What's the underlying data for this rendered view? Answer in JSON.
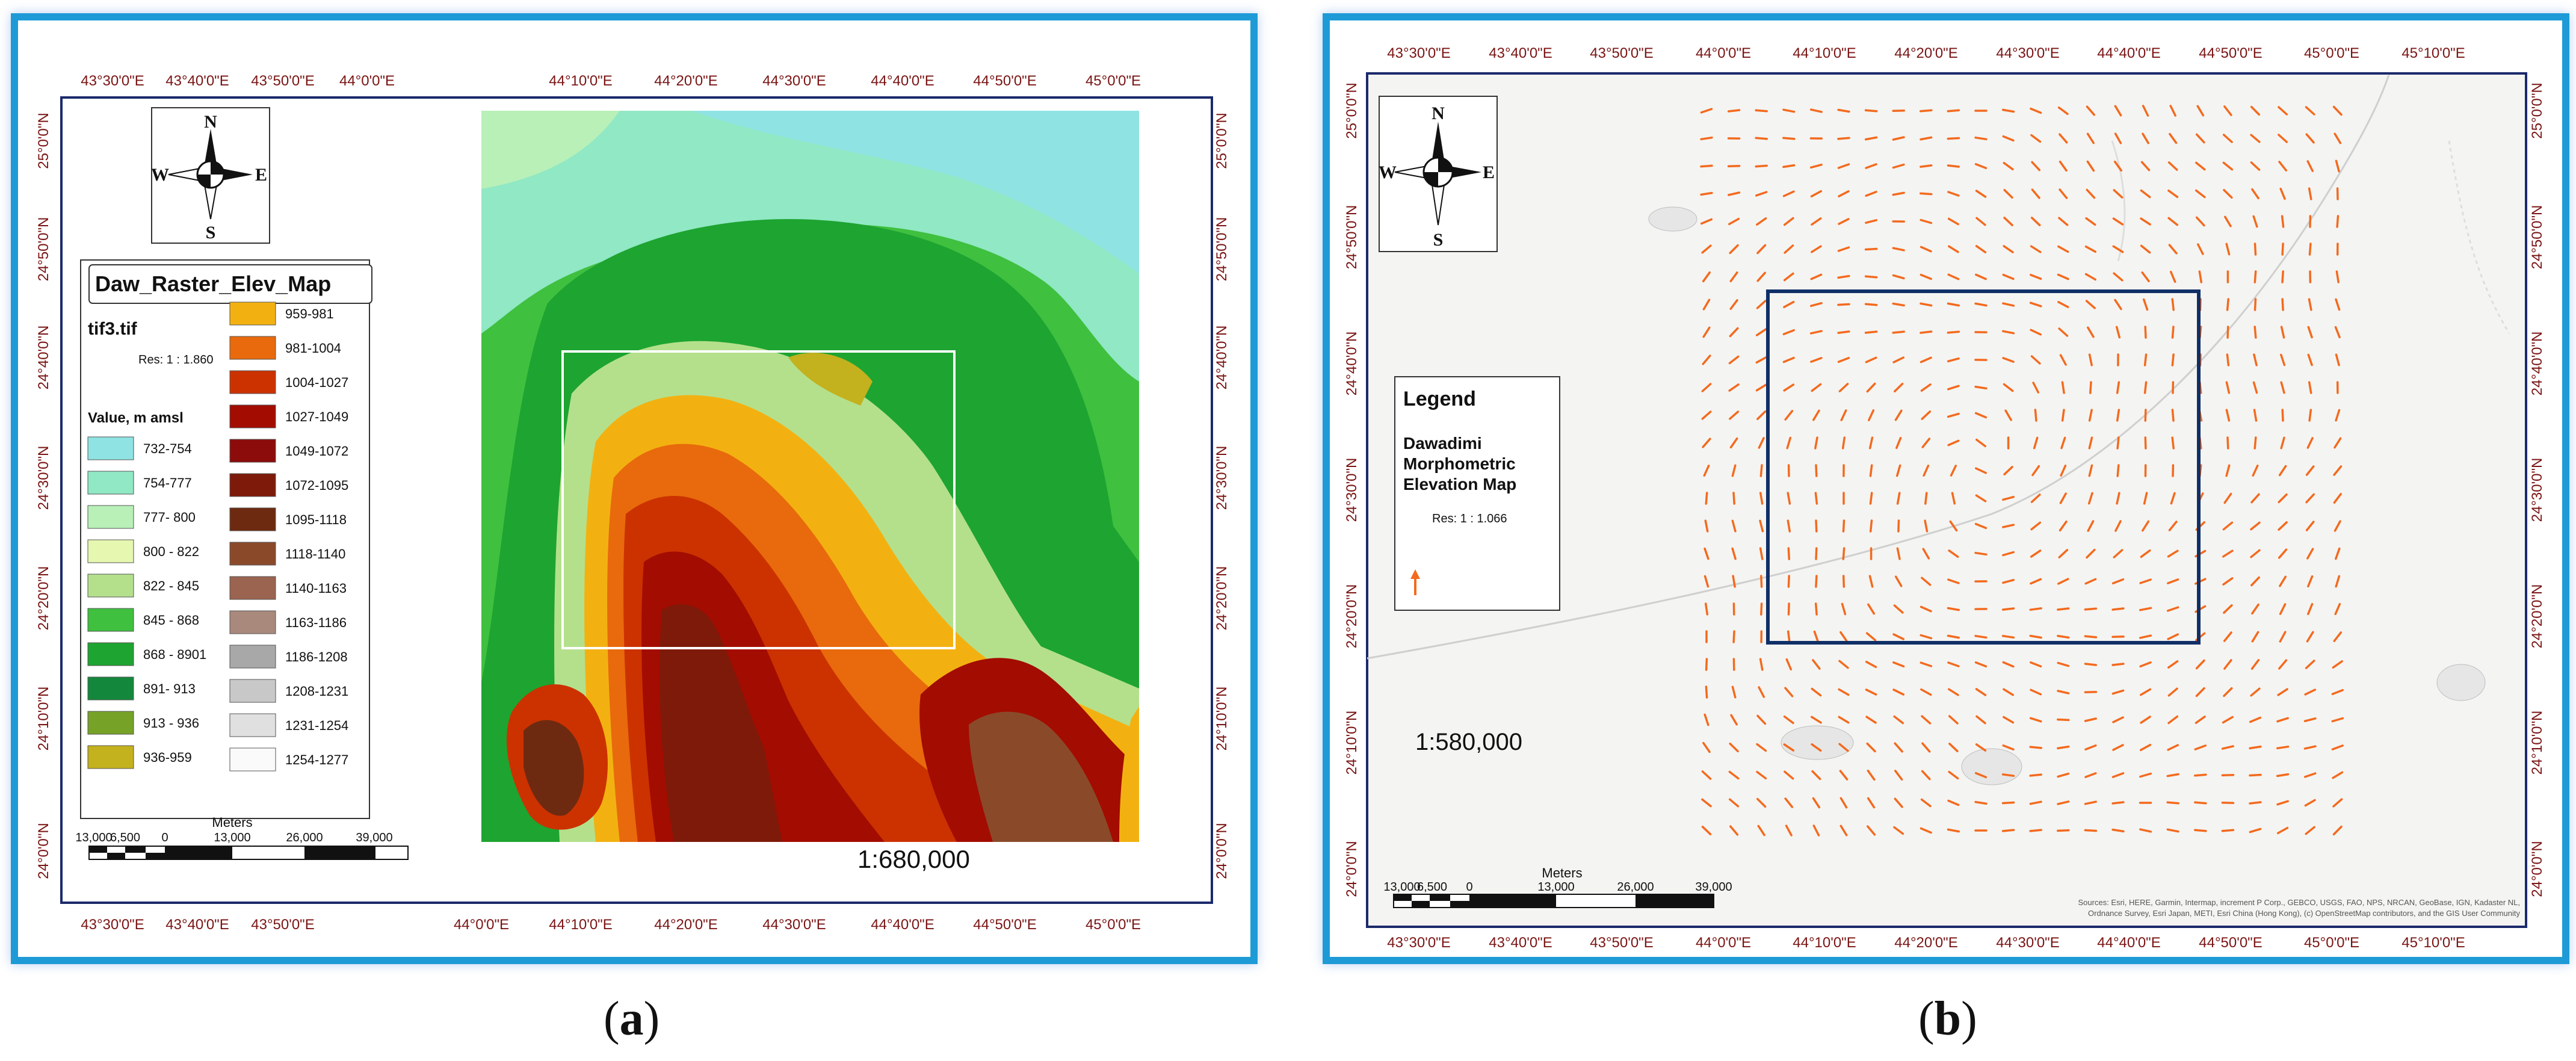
{
  "panel_a": {
    "lon_labels_top": [
      "43°30'0\"E",
      "43°40'0\"E",
      "43°50'0\"E",
      "44°0'0\"E",
      "44°10'0\"E",
      "44°20'0\"E",
      "44°30'0\"E",
      "44°40'0\"E",
      "44°50'0\"E",
      "45°0'0\"E"
    ],
    "lon_labels_bottom": [
      "43°30'0\"E",
      "43°40'0\"E",
      "43°50'0\"E",
      "44°0'0\"E",
      "44°10'0\"E",
      "44°20'0\"E",
      "44°30'0\"E",
      "44°40'0\"E",
      "44°50'0\"E",
      "45°0'0\"E"
    ],
    "lat_labels": [
      "25°0'0\"N",
      "24°50'0\"N",
      "24°40'0\"N",
      "24°30'0\"N",
      "24°20'0\"N",
      "24°10'0\"N",
      "24°0'0\"N"
    ],
    "compass": {
      "n": "N",
      "s": "S",
      "e": "E",
      "w": "W"
    },
    "legend": {
      "title": "Daw_Raster_Elev_Map",
      "layer": "tif3.tif",
      "res": "Res: 1 : 1.860",
      "value_heading": "Value, m amsl",
      "classes_left": [
        {
          "label": "732-754",
          "color": "#8fe3e3"
        },
        {
          "label": "754-777",
          "color": "#90e8c4"
        },
        {
          "label": "777- 800",
          "color": "#b8f0b8"
        },
        {
          "label": "800 - 822",
          "color": "#e6f7b0"
        },
        {
          "label": "822 - 845",
          "color": "#b4e08c"
        },
        {
          "label": "845 - 868",
          "color": "#3fc03f"
        },
        {
          "label": "868 - 8901",
          "color": "#1ea431"
        },
        {
          "label": "891- 913",
          "color": "#13883c"
        },
        {
          "label": "913 - 936",
          "color": "#76a227"
        },
        {
          "label": "936-959",
          "color": "#c3b11e"
        }
      ],
      "classes_right": [
        {
          "label": "959-981",
          "color": "#f3b111"
        },
        {
          "label": "981-1004",
          "color": "#e86a0c"
        },
        {
          "label": "1004-1027",
          "color": "#cc3200"
        },
        {
          "label": "1027-1049",
          "color": "#a30c00"
        },
        {
          "label": "1049-1072",
          "color": "#8c0c0c"
        },
        {
          "label": "1072-1095",
          "color": "#7e1a0a"
        },
        {
          "label": "1095-1118",
          "color": "#6e2a10"
        },
        {
          "label": "1118-1140",
          "color": "#8a4a2a"
        },
        {
          "label": "1140-1163",
          "color": "#9a6450"
        },
        {
          "label": "1163-1186",
          "color": "#a9897c"
        },
        {
          "label": "1186-1208",
          "color": "#a8a8a8"
        },
        {
          "label": "1208-1231",
          "color": "#c8c8c8"
        },
        {
          "label": "1231-1254",
          "color": "#e0e0e0"
        },
        {
          "label": "1254-1277",
          "color": "#fafafa"
        }
      ]
    },
    "scalebar": {
      "units": "Meters",
      "labels": [
        "13,000",
        "6,500",
        "0",
        "13,000",
        "26,000",
        "39,000"
      ]
    },
    "scale_text": "1:680,000",
    "caption_letter": "a"
  },
  "panel_b": {
    "lon_labels_top": [
      "43°30'0\"E",
      "43°40'0\"E",
      "43°50'0\"E",
      "44°0'0\"E",
      "44°10'0\"E",
      "44°20'0\"E",
      "44°30'0\"E",
      "44°40'0\"E",
      "44°50'0\"E",
      "45°0'0\"E",
      "45°10'0\"E"
    ],
    "lon_labels_bottom": [
      "43°30'0\"E",
      "43°40'0\"E",
      "43°50'0\"E",
      "44°0'0\"E",
      "44°10'0\"E",
      "44°20'0\"E",
      "44°30'0\"E",
      "44°40'0\"E",
      "44°50'0\"E",
      "45°0'0\"E",
      "45°10'0\"E"
    ],
    "lat_labels": [
      "25°0'0\"N",
      "24°50'0\"N",
      "24°40'0\"N",
      "24°30'0\"N",
      "24°20'0\"N",
      "24°10'0\"N",
      "24°0'0\"N"
    ],
    "compass": {
      "n": "N",
      "s": "S",
      "e": "E",
      "w": "W"
    },
    "legend": {
      "title": "Legend",
      "line1": "Dawadimi",
      "line2": "Morphometric",
      "line3": "Elevation Map",
      "res": "Res: 1 : 1.066"
    },
    "scale_text": "1:580,000",
    "scalebar": {
      "units": "Meters",
      "labels": [
        "13,000",
        "6,500",
        "0",
        "13,000",
        "26,000",
        "39,000"
      ]
    },
    "attribution_line1": "Sources: Esri, HERE, Garmin, Intermap, increment P Corp., GEBCO, USGS, FAO, NPS, NRCAN, GeoBase, IGN, Kadaster NL,",
    "attribution_line2": "Ordnance Survey, Esri Japan, METI, Esri China (Hong Kong), (c) OpenStreetMap contributors, and the GIS User Community",
    "caption_letter": "b"
  },
  "colors": {
    "frame": "#1e9bd7",
    "neatline": "#1b2a6b",
    "grid_label": "#7a1414",
    "study_box_a": "#ffffff",
    "study_box_b": "#0f2f66",
    "vector_arrow": "#f36a1e"
  }
}
